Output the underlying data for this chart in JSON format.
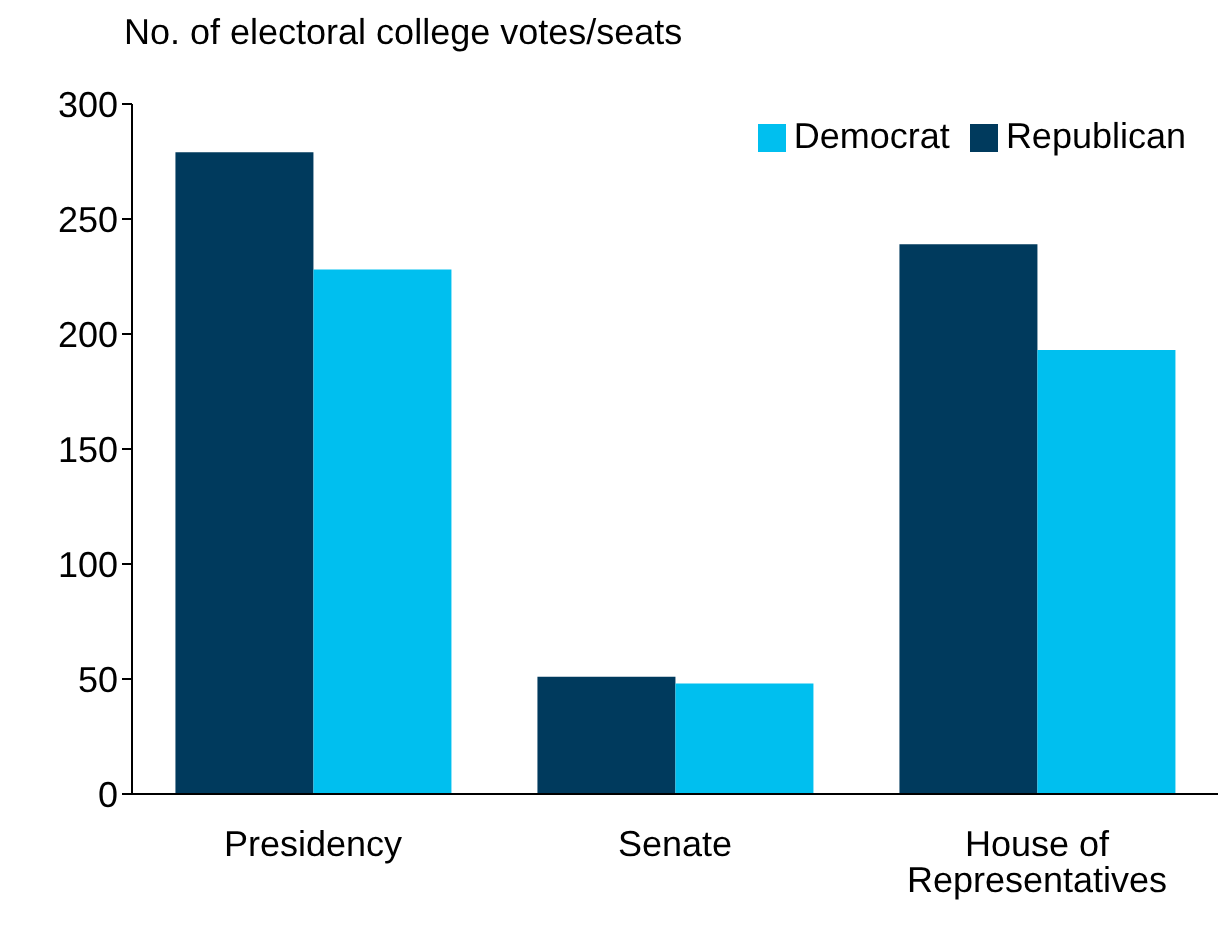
{
  "chart_data": {
    "type": "bar",
    "ylabel": "No. of electoral college votes/seats",
    "categories": [
      "Presidency",
      "Senate",
      "House of Representatives"
    ],
    "series": [
      {
        "name": "Republican",
        "color": "#003a5d",
        "values": [
          279,
          51,
          239
        ]
      },
      {
        "name": "Democrat",
        "color": "#00bfef",
        "values": [
          228,
          48,
          193
        ]
      }
    ],
    "ylim": [
      0,
      300
    ],
    "yticks": [
      0,
      50,
      100,
      150,
      200,
      250,
      300
    ],
    "grid": false,
    "legend": "top right"
  }
}
